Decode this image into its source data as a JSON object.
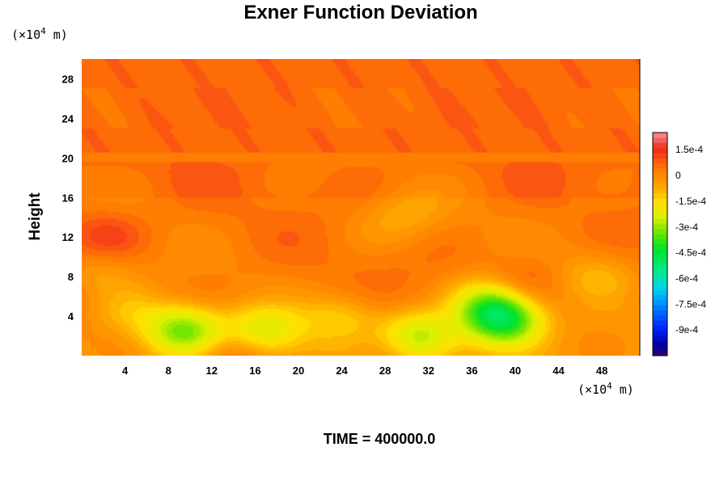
{
  "chart_data": {
    "type": "heatmap",
    "title": "Exner Function Deviation",
    "ylabel": "Height",
    "xlabel": "",
    "x_unit_prefix": "(×10",
    "unit_exp": "4",
    "unit_suffix": " m)",
    "y_unit_prefix": "(×10",
    "xlim": [
      0,
      51.5
    ],
    "ylim": [
      0,
      30
    ],
    "x_ticks": [
      4,
      8,
      12,
      16,
      20,
      24,
      28,
      32,
      36,
      40,
      44,
      48
    ],
    "y_ticks": [
      4,
      8,
      12,
      16,
      20,
      24,
      28
    ],
    "colorbar": {
      "range": [
        -0.00105,
        0.00025
      ],
      "tick_values": [
        0.00015,
        0,
        -0.00015,
        -0.0003,
        -0.00045,
        -0.0006,
        -0.00075,
        -0.0009
      ],
      "tick_labels": [
        "1.5e-4",
        "0",
        "-1.5e-4",
        "-3e-4",
        "-4.5e-4",
        "-6e-4",
        "-7.5e-4",
        "-9e-4"
      ]
    },
    "background_level": 3e-05,
    "stratosphere_level": 6e-05,
    "features": [
      {
        "x": 9.5,
        "y": 2.5,
        "value": -0.00033
      },
      {
        "x": 31.0,
        "y": 1.8,
        "value": -0.0003
      },
      {
        "x": 39.0,
        "y": 3.5,
        "value": -0.0004
      },
      {
        "x": 37.5,
        "y": 5.5,
        "value": -0.00025
      },
      {
        "x": 16.8,
        "y": 2.5,
        "value": -0.00022
      },
      {
        "x": 4.5,
        "y": 4.5,
        "value": -0.0001
      },
      {
        "x": 24.0,
        "y": 4.0,
        "value": -0.00012
      },
      {
        "x": 47.5,
        "y": 8.0,
        "value": -0.0001
      },
      {
        "x": 1.5,
        "y": 8.5,
        "value": -8e-05
      },
      {
        "x": 13.8,
        "y": 0.3,
        "value": 0.00012
      },
      {
        "x": 28.5,
        "y": 0.3,
        "value": 0.00012
      },
      {
        "x": 2.0,
        "y": 12.0,
        "value": 0.0001
      },
      {
        "x": 40.5,
        "y": 7.5,
        "value": 8e-05
      },
      {
        "x": 30.5,
        "y": 14.5,
        "value": -6e-05
      },
      {
        "x": 28.0,
        "y": 13.0,
        "value": -4e-05
      }
    ]
  },
  "footer": {
    "time_label": "TIME = 400000.0"
  }
}
